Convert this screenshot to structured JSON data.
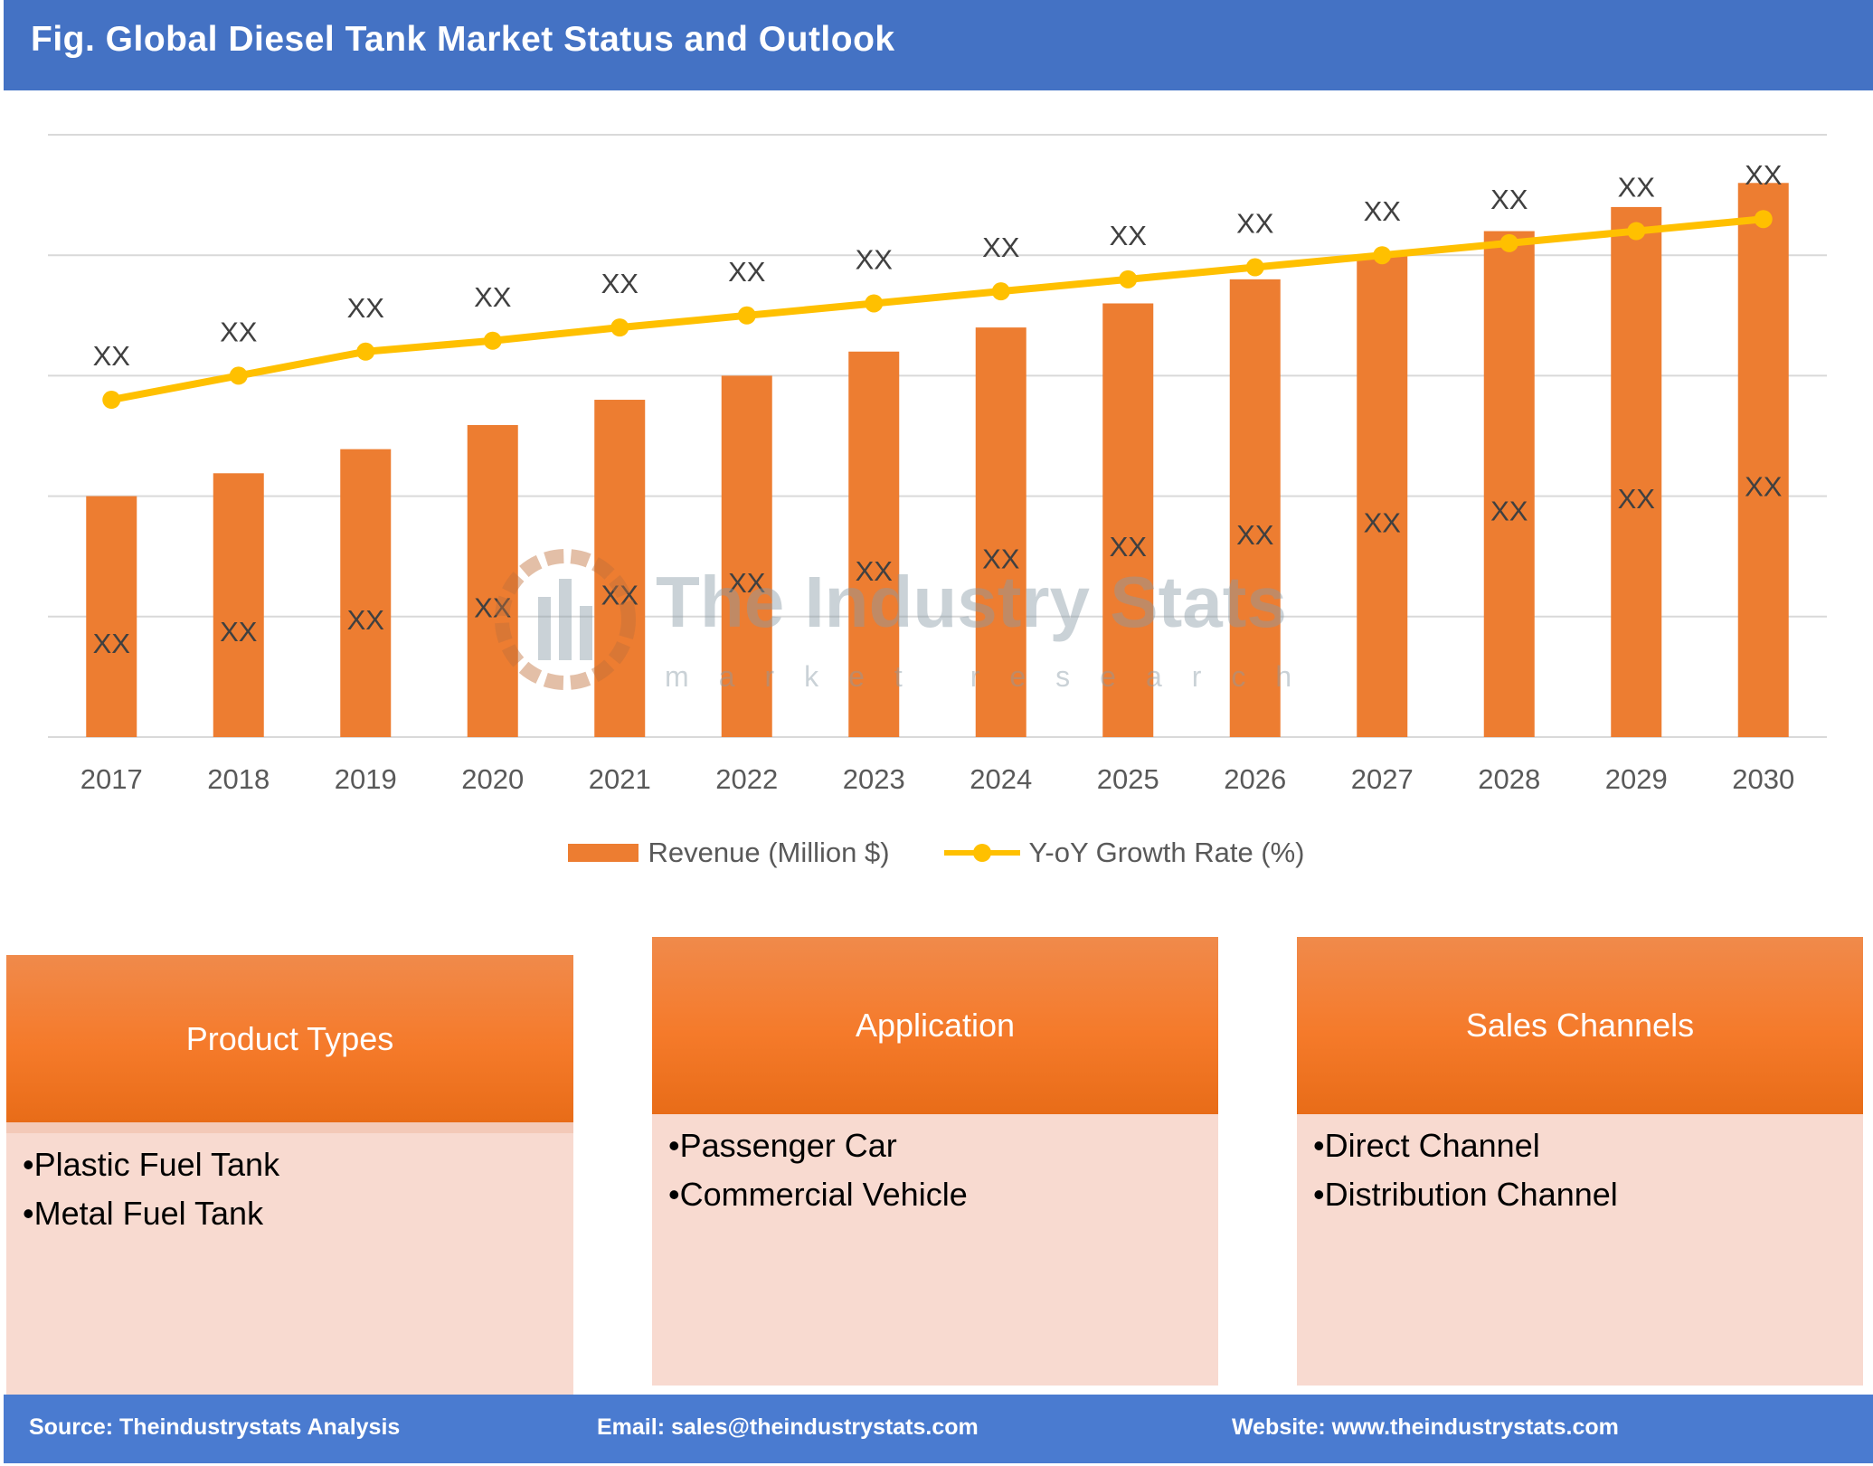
{
  "header": {
    "title": "Fig. Global Diesel Tank Market Status and Outlook"
  },
  "chart_data": {
    "type": "bar",
    "title": "Fig. Global Diesel Tank Market Status and Outlook",
    "categories": [
      "2017",
      "2018",
      "2019",
      "2020",
      "2021",
      "2022",
      "2023",
      "2024",
      "2025",
      "2026",
      "2027",
      "2028",
      "2029",
      "2030"
    ],
    "series": [
      {
        "name": "Revenue (Million $)",
        "type": "bar",
        "color": "#ed7d31",
        "values": [
          2.0,
          2.19,
          2.39,
          2.59,
          2.8,
          3.0,
          3.2,
          3.4,
          3.6,
          3.8,
          4.0,
          4.2,
          4.4,
          4.6
        ],
        "data_labels": [
          "XX",
          "XX",
          "XX",
          "XX",
          "XX",
          "XX",
          "XX",
          "XX",
          "XX",
          "XX",
          "XX",
          "XX",
          "XX",
          "XX"
        ]
      },
      {
        "name": "Y-oY Growth Rate (%)",
        "type": "line",
        "color": "#ffc000",
        "values": [
          2.8,
          3.0,
          3.2,
          3.29,
          3.4,
          3.5,
          3.6,
          3.7,
          3.8,
          3.9,
          4.0,
          4.1,
          4.2,
          4.3
        ],
        "data_labels": [
          "XX",
          "XX",
          "XX",
          "XX",
          "XX",
          "XX",
          "XX",
          "XX",
          "XX",
          "XX",
          "XX",
          "XX",
          "XX",
          "XX"
        ]
      }
    ],
    "ylim": [
      0,
      5
    ],
    "y_tick_labels_shown": false,
    "grid": true,
    "legend": "bottom"
  },
  "watermark": {
    "name": "The Industry Stats",
    "tagline": "market research"
  },
  "boxes": [
    {
      "title": "Product Types",
      "items": [
        "Plastic Fuel Tank",
        "Metal Fuel Tank"
      ]
    },
    {
      "title": "Application",
      "items": [
        "Passenger Car",
        "Commercial Vehicle"
      ]
    },
    {
      "title": "Sales Channels",
      "items": [
        "Direct Channel",
        "Distribution Channel"
      ]
    }
  ],
  "footer": {
    "source": "Source: Theindustrystats Analysis",
    "email": "Email: sales@theindustrystats.com",
    "website": "Website: www.theindustrystats.com"
  }
}
